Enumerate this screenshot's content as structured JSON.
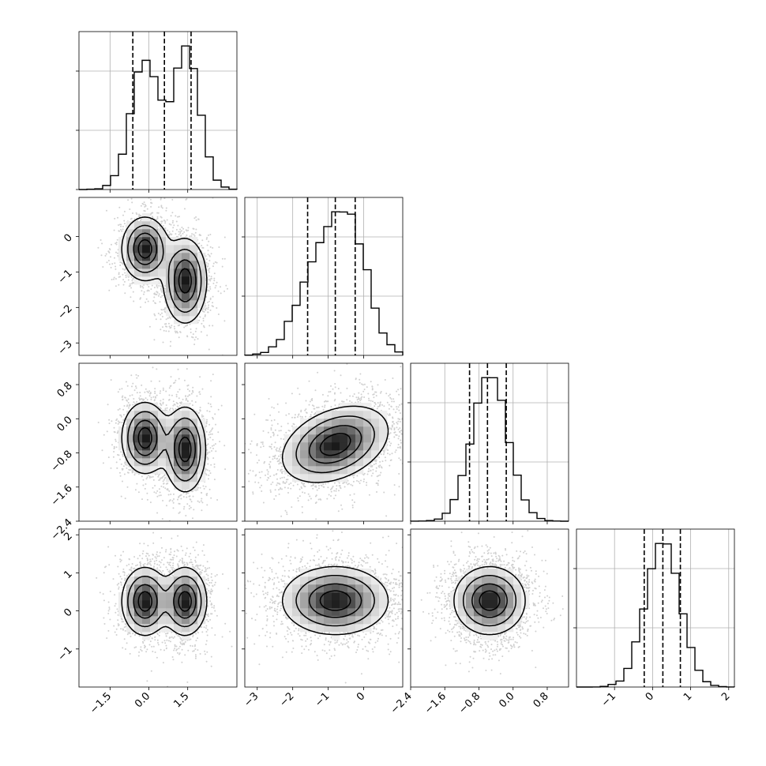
{
  "chart_data": {
    "type": "corner",
    "n_params": 4,
    "ranges": [
      [
        -2.7,
        3.4
      ],
      [
        -3.35,
        1.1
      ],
      [
        -2.4,
        1.3
      ],
      [
        -2.0,
        2.15
      ]
    ],
    "x_ticks": [
      [
        -1.5,
        0.0,
        1.5
      ],
      [
        -3,
        -2,
        -1,
        0
      ],
      [
        -2.4,
        -1.6,
        -0.8,
        0.0,
        0.8
      ],
      [
        -1,
        0,
        1,
        2
      ]
    ],
    "x_tick_labels": [
      [
        "−1.5",
        "0.0",
        "1.5"
      ],
      [
        "−3",
        "−2",
        "−1",
        "0"
      ],
      [
        "−2.4",
        "−1.6",
        "−0.8",
        "0.0",
        "0.8"
      ],
      [
        "−1",
        "0",
        "1",
        "2"
      ]
    ],
    "y_ticks": [
      [],
      [
        -3,
        -2,
        -1,
        0
      ],
      [
        -2.4,
        -1.6,
        -0.8,
        0.0,
        0.8
      ],
      [
        -1,
        0,
        1,
        2
      ]
    ],
    "y_tick_labels": [
      [],
      [
        "−3",
        "−2",
        "−1",
        "0"
      ],
      [
        "−2.4",
        "−1.6",
        "−0.8",
        "0.0",
        "0.8"
      ],
      [
        "−1",
        "0",
        "1",
        "2"
      ]
    ],
    "quantiles": [
      [
        -0.62,
        0.6,
        1.63
      ],
      [
        -1.58,
        -0.8,
        -0.24
      ],
      [
        -1.02,
        -0.6,
        -0.16
      ],
      [
        -0.22,
        0.27,
        0.73
      ]
    ],
    "marginals": [
      {
        "mixture": [
          {
            "w": 0.5,
            "mu": -0.15,
            "sd": 0.55
          },
          {
            "w": 0.5,
            "mu": 1.45,
            "sd": 0.5
          }
        ]
      },
      {
        "mixture": [
          {
            "w": 0.5,
            "mu": -0.35,
            "sd": 0.5
          },
          {
            "w": 0.5,
            "mu": -1.25,
            "sd": 0.6
          }
        ]
      },
      {
        "mixture": [
          {
            "w": 1.0,
            "mu": -0.55,
            "sd": 0.42
          }
        ]
      },
      {
        "mixture": [
          {
            "w": 1.0,
            "mu": 0.27,
            "sd": 0.45
          }
        ]
      }
    ],
    "pairs": [
      {
        "row": 1,
        "col": 0,
        "blobs": [
          {
            "w": 0.5,
            "mx": -0.15,
            "my": -0.35,
            "sx": 0.45,
            "sy": 0.45,
            "r": 0.0
          },
          {
            "w": 0.5,
            "mx": 1.4,
            "my": -1.25,
            "sx": 0.42,
            "sy": 0.6,
            "r": 0.0
          }
        ]
      },
      {
        "row": 2,
        "col": 0,
        "blobs": [
          {
            "w": 0.5,
            "mx": -0.15,
            "my": -0.45,
            "sx": 0.45,
            "sy": 0.42,
            "r": 0.0
          },
          {
            "w": 0.5,
            "mx": 1.4,
            "my": -0.72,
            "sx": 0.4,
            "sy": 0.5,
            "r": 0.0
          }
        ]
      },
      {
        "row": 2,
        "col": 1,
        "blobs": [
          {
            "w": 1.0,
            "mx": -0.8,
            "my": -0.6,
            "sx": 0.75,
            "sy": 0.45,
            "r": 0.35
          }
        ]
      },
      {
        "row": 3,
        "col": 0,
        "blobs": [
          {
            "w": 0.5,
            "mx": -0.15,
            "my": 0.25,
            "sx": 0.45,
            "sy": 0.45,
            "r": 0.0
          },
          {
            "w": 0.5,
            "mx": 1.4,
            "my": 0.25,
            "sx": 0.42,
            "sy": 0.45,
            "r": 0.0
          }
        ]
      },
      {
        "row": 3,
        "col": 1,
        "blobs": [
          {
            "w": 1.0,
            "mx": -0.8,
            "my": 0.27,
            "sx": 0.75,
            "sy": 0.45,
            "r": 0.0
          }
        ]
      },
      {
        "row": 3,
        "col": 2,
        "blobs": [
          {
            "w": 1.0,
            "mx": -0.55,
            "my": 0.27,
            "sx": 0.42,
            "sy": 0.45,
            "r": 0.0
          }
        ]
      }
    ],
    "contour_levels": [
      0.39,
      0.86,
      1.0
    ],
    "grid": true,
    "title": "",
    "labels": []
  }
}
